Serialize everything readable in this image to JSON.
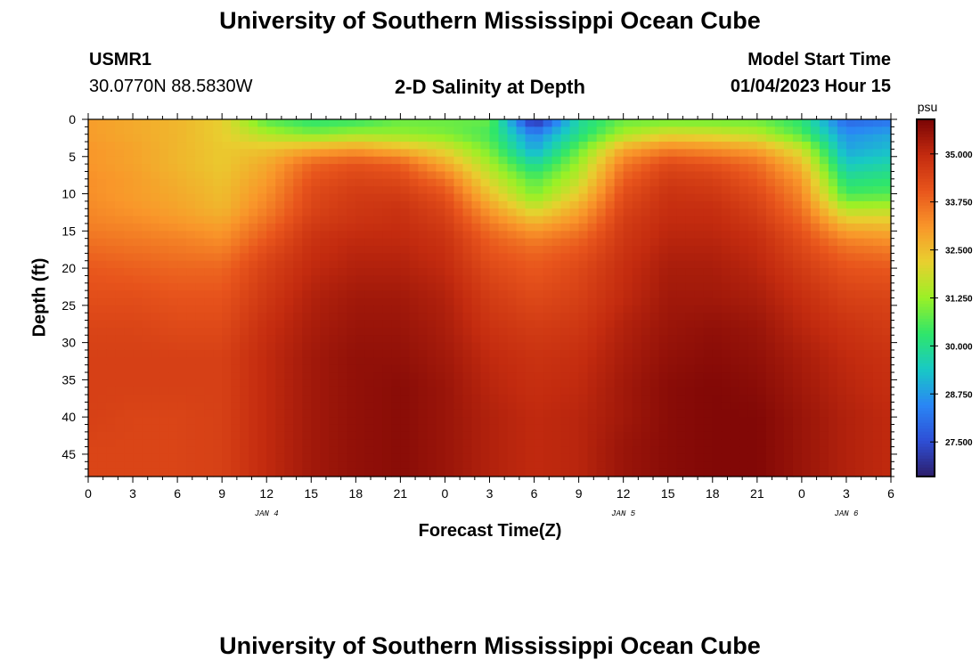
{
  "page": {
    "title_top": "University of Southern Mississippi Ocean Cube",
    "title_bottom": "University of Southern Mississippi Ocean Cube",
    "station": {
      "id": "USMR1",
      "coords": "30.0770N  88.5830W"
    },
    "plot_title": "2-D Salinity at Depth",
    "model_start": {
      "label": "Model Start Time",
      "value": "01/04/2023 Hour 15"
    }
  },
  "chart_data": {
    "type": "heatmap",
    "title": "2-D Salinity at Depth",
    "xlabel": "Forecast Time(Z)",
    "ylabel": "Depth (ft)",
    "x_range_hours": [
      0,
      54
    ],
    "x_tick_labels": [
      "0",
      "3",
      "6",
      "9",
      "12",
      "15",
      "18",
      "21",
      "0",
      "3",
      "6",
      "9",
      "12",
      "15",
      "18",
      "21",
      "0",
      "3",
      "6"
    ],
    "y_ticks": [
      0,
      5,
      10,
      15,
      20,
      25,
      30,
      35,
      40,
      45
    ],
    "y_range": [
      0,
      48
    ],
    "date_labels": [
      {
        "text": "JAN 4",
        "hour": 12
      },
      {
        "text": "JAN 5",
        "hour": 36
      },
      {
        "text": "JAN 6",
        "hour": 51
      }
    ],
    "colorbar": {
      "unit": "psu",
      "min": 26.6,
      "max": 35.9,
      "tick_labels": [
        "35.000",
        "33.750",
        "32.500",
        "31.250",
        "30.000",
        "28.750",
        "27.500"
      ],
      "tick_values": [
        35.0,
        33.75,
        32.5,
        31.25,
        30.0,
        28.75,
        27.5
      ],
      "colormap": [
        "#2d1e6b",
        "#2e4fd6",
        "#2a86f5",
        "#18c9c5",
        "#2fe66a",
        "#9bf026",
        "#e8d02f",
        "#f9962a",
        "#e8551c",
        "#c32b0f",
        "#7a0405"
      ]
    },
    "grid": {
      "depths_ft": [
        0,
        2,
        4,
        6,
        8,
        10,
        12,
        14,
        16,
        18,
        20,
        24,
        28,
        32,
        36,
        40,
        44,
        48
      ],
      "hours": [
        0,
        3,
        6,
        9,
        12,
        15,
        18,
        21,
        24,
        27,
        30,
        33,
        36,
        39,
        42,
        45,
        48,
        51,
        54
      ],
      "salinity_psu": [
        [
          33.0,
          32.8,
          32.6,
          32.2,
          30.6,
          30.2,
          30.3,
          30.8,
          30.8,
          30.8,
          26.7,
          29.8,
          30.8,
          30.8,
          30.8,
          30.8,
          30.2,
          27.9,
          28.1
        ],
        [
          33.0,
          32.8,
          32.6,
          32.2,
          31.5,
          31.0,
          31.3,
          31.2,
          31.0,
          30.5,
          28.4,
          30.0,
          31.4,
          32.0,
          31.9,
          31.6,
          30.6,
          28.6,
          28.9
        ],
        [
          33.1,
          32.9,
          32.6,
          32.3,
          32.4,
          32.8,
          33.0,
          32.6,
          32.0,
          30.9,
          28.9,
          30.8,
          32.8,
          33.4,
          33.2,
          32.9,
          31.8,
          28.9,
          29.2
        ],
        [
          33.1,
          32.9,
          32.6,
          32.3,
          32.8,
          33.8,
          34.1,
          33.9,
          32.8,
          31.4,
          29.8,
          31.3,
          33.5,
          34.3,
          34.1,
          33.7,
          32.5,
          29.4,
          29.7
        ],
        [
          33.2,
          33.0,
          32.7,
          32.4,
          33.0,
          34.1,
          34.4,
          34.3,
          33.6,
          31.9,
          30.6,
          31.7,
          33.9,
          34.6,
          34.5,
          34.0,
          33.0,
          30.0,
          30.2
        ],
        [
          33.2,
          33.0,
          32.8,
          32.5,
          33.2,
          34.3,
          34.6,
          34.6,
          34.1,
          32.4,
          31.0,
          32.2,
          34.2,
          34.8,
          34.7,
          34.3,
          33.3,
          30.5,
          30.6
        ],
        [
          33.3,
          33.1,
          32.9,
          32.6,
          33.4,
          34.4,
          34.7,
          34.8,
          34.4,
          33.0,
          31.8,
          32.8,
          34.4,
          34.9,
          34.9,
          34.5,
          33.6,
          31.5,
          31.6
        ],
        [
          33.4,
          33.3,
          33.1,
          32.9,
          33.7,
          34.6,
          34.8,
          34.9,
          34.6,
          33.5,
          32.7,
          33.3,
          34.6,
          35.0,
          35.0,
          34.7,
          33.9,
          32.5,
          32.4
        ],
        [
          33.6,
          33.5,
          33.4,
          33.2,
          34.0,
          34.8,
          35.0,
          35.0,
          34.8,
          33.9,
          33.4,
          33.8,
          34.7,
          35.1,
          35.1,
          34.9,
          34.2,
          33.3,
          33.1
        ],
        [
          33.8,
          33.7,
          33.6,
          33.5,
          34.3,
          34.9,
          35.1,
          35.1,
          34.9,
          34.1,
          33.8,
          34.1,
          34.8,
          35.2,
          35.2,
          35.0,
          34.4,
          33.8,
          33.6
        ],
        [
          34.0,
          33.9,
          33.8,
          33.8,
          34.5,
          35.0,
          35.2,
          35.2,
          35.0,
          34.3,
          34.0,
          34.3,
          34.9,
          35.3,
          35.3,
          35.1,
          34.6,
          34.1,
          34.0
        ],
        [
          34.2,
          34.2,
          34.1,
          34.1,
          34.7,
          35.2,
          35.4,
          35.4,
          35.2,
          34.6,
          34.3,
          34.5,
          35.0,
          35.4,
          35.4,
          35.3,
          34.9,
          34.5,
          34.4
        ],
        [
          34.4,
          34.4,
          34.3,
          34.3,
          34.9,
          35.3,
          35.5,
          35.5,
          35.3,
          34.8,
          34.6,
          34.7,
          35.2,
          35.5,
          35.6,
          35.5,
          35.1,
          34.8,
          34.6
        ],
        [
          34.5,
          34.5,
          34.5,
          34.5,
          35.0,
          35.4,
          35.6,
          35.6,
          35.4,
          35.0,
          34.8,
          34.9,
          35.3,
          35.6,
          35.7,
          35.6,
          35.3,
          35.0,
          34.8
        ],
        [
          34.5,
          34.5,
          34.5,
          34.5,
          35.0,
          35.4,
          35.6,
          35.7,
          35.5,
          35.1,
          34.9,
          35.0,
          35.4,
          35.7,
          35.8,
          35.7,
          35.4,
          35.1,
          34.9
        ],
        [
          34.5,
          34.4,
          34.4,
          34.5,
          35.0,
          35.4,
          35.6,
          35.7,
          35.5,
          35.2,
          35.0,
          35.1,
          35.4,
          35.7,
          35.8,
          35.8,
          35.5,
          35.2,
          35.0
        ],
        [
          34.4,
          34.4,
          34.4,
          34.5,
          35.0,
          35.4,
          35.6,
          35.7,
          35.5,
          35.2,
          35.0,
          35.1,
          35.5,
          35.7,
          35.8,
          35.8,
          35.5,
          35.2,
          35.0
        ],
        [
          34.4,
          34.4,
          34.4,
          34.5,
          35.0,
          35.4,
          35.6,
          35.7,
          35.5,
          35.2,
          35.0,
          35.1,
          35.5,
          35.7,
          35.8,
          35.8,
          35.5,
          35.2,
          35.0
        ]
      ]
    }
  }
}
